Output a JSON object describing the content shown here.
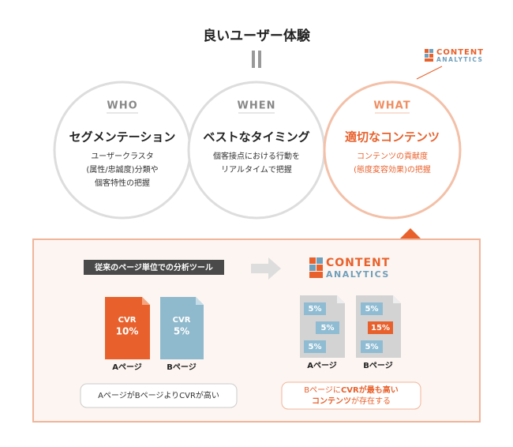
{
  "header": {
    "title": "良いユーザー体験",
    "logo": {
      "line1": "CONTENT",
      "line2": "ANALYTICS"
    }
  },
  "circles": [
    {
      "label": "WHO",
      "title": "セグメンテーション",
      "description": [
        "ユーザークラスタ",
        "(属性/忠誠度)分類や",
        "個客特性の把握"
      ]
    },
    {
      "label": "WHEN",
      "title": "ベストなタイミング",
      "description": [
        "個客接点における行動を",
        "リアルタイムで把握"
      ]
    },
    {
      "label": "WHAT",
      "title": "適切なコンテンツ",
      "description": [
        "コンテンツの貢献度",
        "(態度変容効果)の把握"
      ]
    }
  ],
  "panel": {
    "tag": "従来のページ単位での分析ツール",
    "logo": {
      "line1": "CONTENT",
      "line2": "ANALYTICS"
    },
    "left": {
      "docs": [
        {
          "metric": "CVR",
          "value": "10%",
          "caption": "Aページ"
        },
        {
          "metric": "CVR",
          "value": "5%",
          "caption": "Bページ"
        }
      ],
      "note": "AページがBページよりCVRが高い"
    },
    "right": {
      "docs": [
        {
          "cells": [
            "5%",
            "5%",
            "5%"
          ],
          "caption": "Aページ"
        },
        {
          "cells": [
            "5%",
            "15%",
            "5%"
          ],
          "caption": "Bページ"
        }
      ],
      "note": [
        [
          "Bページに",
          "CVRが最も高い"
        ],
        [
          "コンテンツ",
          "が存在する"
        ]
      ]
    }
  }
}
